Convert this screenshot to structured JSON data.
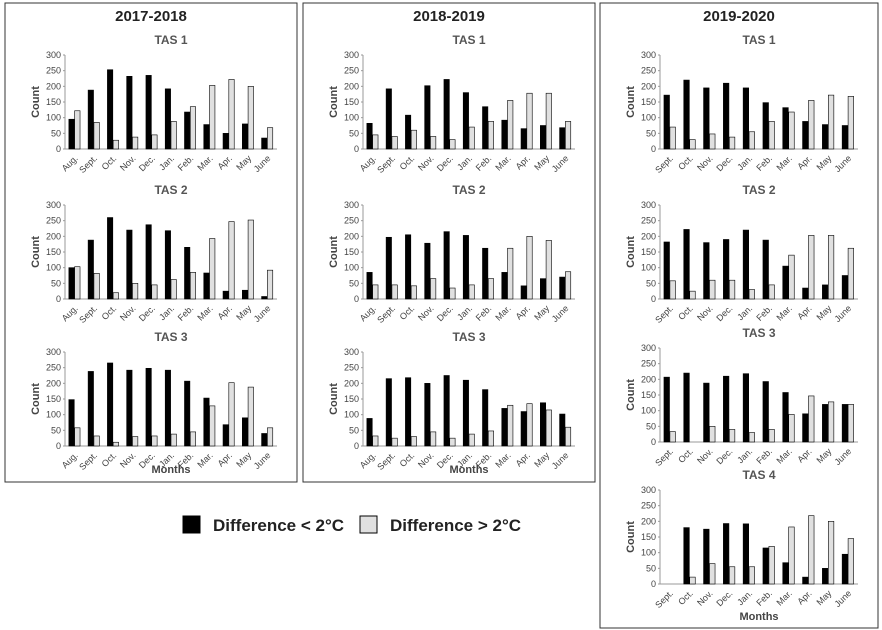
{
  "legend": [
    {
      "name": "Difference < 2°C",
      "color": "#000000"
    },
    {
      "name": "Difference > 2°C",
      "color": "#e0e0e0"
    }
  ],
  "chart_data": [
    {
      "type": "bar",
      "title": "2017-2018",
      "xlabel": "Months",
      "subplots": [
        {
          "title": "TAS 1",
          "ylabel": "Count",
          "categories": [
            "Aug.",
            "Sept.",
            "Oct.",
            "Nov.",
            "Dec.",
            "Jan.",
            "Feb.",
            "Mar.",
            "Apr.",
            "May",
            "June"
          ],
          "ylim": [
            0,
            300
          ],
          "yticks": [
            0,
            50,
            100,
            150,
            200,
            250,
            300
          ],
          "series": [
            {
              "values": [
                95,
                188,
                253,
                232,
                235,
                192,
                118,
                78,
                50,
                80,
                35
              ]
            },
            {
              "values": [
                122,
                85,
                28,
                38,
                45,
                88,
                135,
                203,
                222,
                200,
                68
              ]
            }
          ]
        },
        {
          "title": "TAS 2",
          "ylabel": "Count",
          "categories": [
            "Aug.",
            "Sept.",
            "Oct.",
            "Nov.",
            "Dec.",
            "Jan.",
            "Feb.",
            "Mar.",
            "Apr.",
            "May",
            "June"
          ],
          "ylim": [
            0,
            300
          ],
          "yticks": [
            0,
            50,
            100,
            150,
            200,
            250,
            300
          ],
          "series": [
            {
              "values": [
                100,
                188,
                260,
                220,
                237,
                218,
                165,
                83,
                25,
                28,
                8
              ]
            },
            {
              "values": [
                103,
                82,
                20,
                50,
                45,
                62,
                85,
                193,
                247,
                252,
                92
              ]
            }
          ]
        },
        {
          "title": "TAS 3",
          "ylabel": "Count",
          "categories": [
            "Aug.",
            "Sept.",
            "Oct.",
            "Nov.",
            "Dec.",
            "Jan.",
            "Feb.",
            "Mar.",
            "Apr.",
            "May",
            "June"
          ],
          "ylim": [
            0,
            300
          ],
          "yticks": [
            0,
            50,
            100,
            150,
            200,
            250,
            300
          ],
          "series": [
            {
              "values": [
                148,
                238,
                265,
                242,
                248,
                242,
                207,
                153,
                68,
                90,
                40
              ]
            },
            {
              "values": [
                58,
                32,
                12,
                30,
                32,
                38,
                45,
                128,
                202,
                188,
                58
              ]
            }
          ]
        }
      ]
    },
    {
      "type": "bar",
      "title": "2018-2019",
      "xlabel": "Months",
      "subplots": [
        {
          "title": "TAS 1",
          "ylabel": "Count",
          "categories": [
            "Aug.",
            "Sept.",
            "Oct.",
            "Nov.",
            "Dec.",
            "Jan.",
            "Feb.",
            "Mar.",
            "Apr.",
            "May",
            "June"
          ],
          "ylim": [
            0,
            300
          ],
          "yticks": [
            0,
            50,
            100,
            150,
            200,
            250,
            300
          ],
          "series": [
            {
              "values": [
                82,
                192,
                108,
                202,
                222,
                180,
                135,
                92,
                65,
                75,
                68
              ]
            },
            {
              "values": [
                45,
                40,
                60,
                40,
                30,
                70,
                88,
                155,
                178,
                178,
                88
              ]
            }
          ]
        },
        {
          "title": "TAS 2",
          "ylabel": "Count",
          "categories": [
            "Aug.",
            "Sept.",
            "Oct.",
            "Nov.",
            "Dec.",
            "Jan.",
            "Feb.",
            "Mar.",
            "Apr.",
            "May",
            "June"
          ],
          "ylim": [
            0,
            300
          ],
          "yticks": [
            0,
            50,
            100,
            150,
            200,
            250,
            300
          ],
          "series": [
            {
              "values": [
                85,
                197,
                205,
                178,
                215,
                203,
                162,
                85,
                42,
                65,
                70
              ]
            },
            {
              "values": [
                45,
                45,
                42,
                65,
                35,
                45,
                65,
                162,
                200,
                187,
                87
              ]
            }
          ]
        },
        {
          "title": "TAS 3",
          "ylabel": "Count",
          "categories": [
            "Aug.",
            "Sept.",
            "Oct.",
            "Nov.",
            "Dec.",
            "Jan.",
            "Feb.",
            "Mar.",
            "Apr.",
            "May",
            "June"
          ],
          "ylim": [
            0,
            300
          ],
          "yticks": [
            0,
            50,
            100,
            150,
            200,
            250,
            300
          ],
          "series": [
            {
              "values": [
                88,
                215,
                218,
                200,
                225,
                210,
                180,
                120,
                110,
                138,
                102
              ]
            },
            {
              "values": [
                32,
                25,
                30,
                45,
                25,
                38,
                48,
                130,
                135,
                115,
                60
              ]
            }
          ]
        }
      ]
    },
    {
      "type": "bar",
      "title": "2019-2020",
      "xlabel": "Months",
      "subplots": [
        {
          "title": "TAS 1",
          "ylabel": "Count",
          "categories": [
            "Sept.",
            "Oct.",
            "Nov.",
            "Dec.",
            "Jan.",
            "Feb.",
            "Mar.",
            "Apr.",
            "May",
            "June"
          ],
          "ylim": [
            0,
            300
          ],
          "yticks": [
            0,
            50,
            100,
            150,
            200,
            250,
            300
          ],
          "series": [
            {
              "values": [
                172,
                220,
                195,
                210,
                195,
                148,
                132,
                88,
                78,
                75
              ]
            },
            {
              "values": [
                70,
                30,
                48,
                38,
                55,
                88,
                118,
                155,
                172,
                168
              ]
            }
          ]
        },
        {
          "title": "TAS 2",
          "ylabel": "Count",
          "categories": [
            "Sept.",
            "Oct.",
            "Nov.",
            "Dec.",
            "Jan.",
            "Feb.",
            "Mar.",
            "Apr.",
            "May",
            "June"
          ],
          "ylim": [
            0,
            300
          ],
          "yticks": [
            0,
            50,
            100,
            150,
            200,
            250,
            300
          ],
          "series": [
            {
              "values": [
                182,
                222,
                180,
                190,
                220,
                188,
                105,
                35,
                45,
                75
              ]
            },
            {
              "values": [
                58,
                25,
                60,
                60,
                30,
                45,
                140,
                203,
                203,
                162
              ]
            }
          ]
        },
        {
          "title": "TAS 3",
          "ylabel": "Count",
          "categories": [
            "Sept.",
            "Oct.",
            "Nov.",
            "Dec.",
            "Jan.",
            "Feb.",
            "Mar.",
            "Apr.",
            "May",
            "June"
          ],
          "ylim": [
            0,
            300
          ],
          "yticks": [
            0,
            50,
            100,
            150,
            200,
            250,
            300
          ],
          "series": [
            {
              "values": [
                207,
                220,
                188,
                210,
                218,
                193,
                158,
                90,
                120,
                120
              ]
            },
            {
              "values": [
                33,
                0,
                50,
                40,
                30,
                40,
                88,
                147,
                128,
                120
              ]
            }
          ]
        },
        {
          "title": "TAS 4",
          "ylabel": "Count",
          "categories": [
            "Sept.",
            "Oct.",
            "Nov.",
            "Dec.",
            "Jan.",
            "Feb.",
            "Mar.",
            "Apr.",
            "May",
            "June"
          ],
          "ylim": [
            0,
            300
          ],
          "yticks": [
            0,
            50,
            100,
            150,
            200,
            250,
            300
          ],
          "series": [
            {
              "values": [
                0,
                180,
                175,
                193,
                192,
                115,
                68,
                22,
                50,
                95
              ]
            },
            {
              "values": [
                0,
                22,
                65,
                55,
                55,
                120,
                182,
                218,
                200,
                145
              ]
            }
          ]
        }
      ]
    }
  ]
}
